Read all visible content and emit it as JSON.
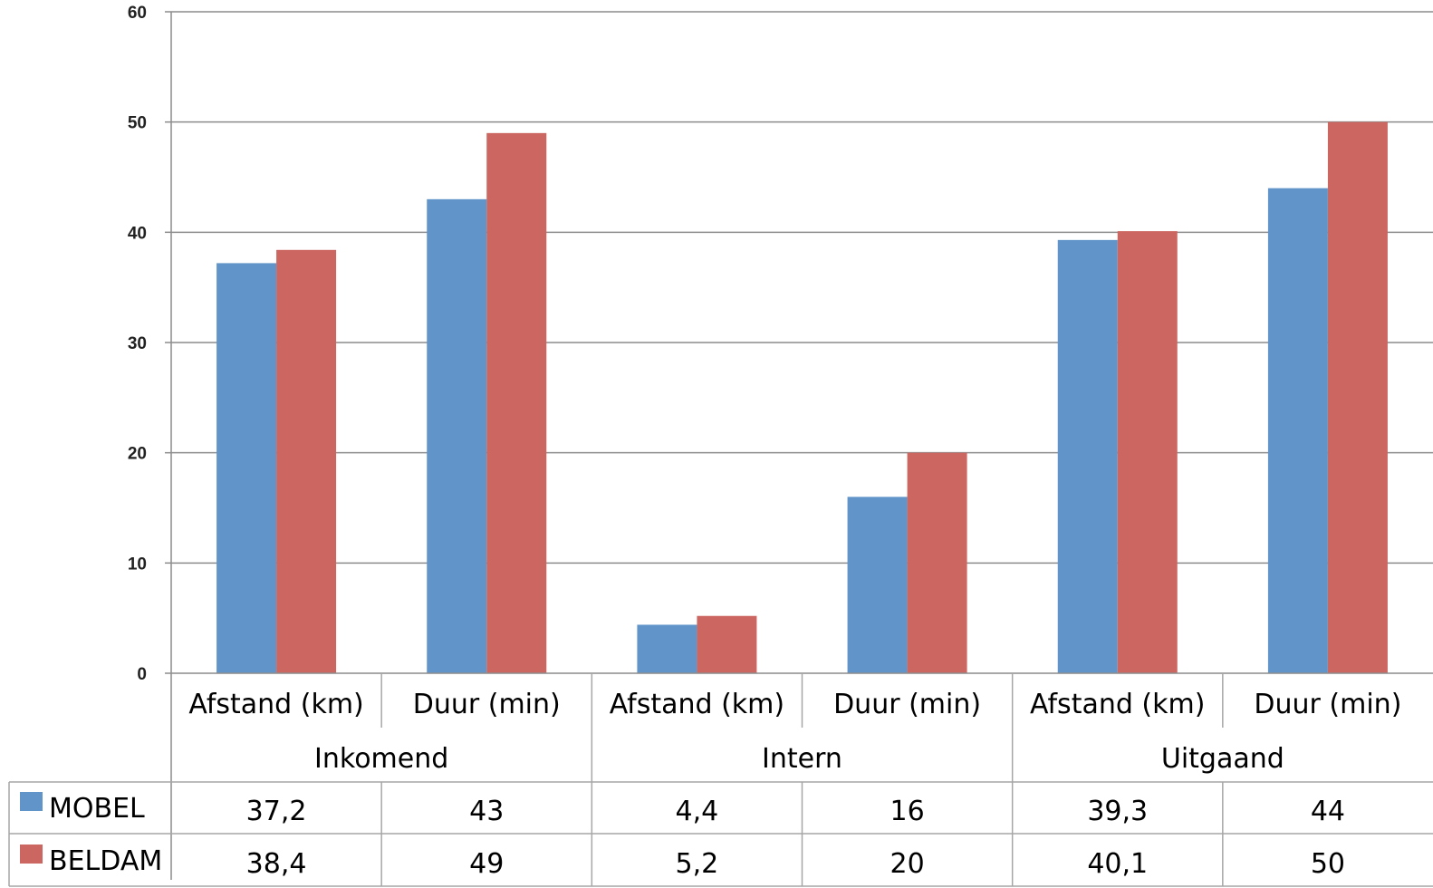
{
  "chart_data": {
    "type": "bar",
    "categories": [
      "Afstand (km)",
      "Duur (min)",
      "Afstand (km)",
      "Duur (min)",
      "Afstand (km)",
      "Duur (min)"
    ],
    "groups": [
      {
        "label": "Inkomend",
        "span": 2
      },
      {
        "label": "Intern",
        "span": 2
      },
      {
        "label": "Uitgaand",
        "span": 2
      }
    ],
    "series": [
      {
        "name": "MOBEL",
        "color": "#6195C9",
        "values": [
          37.2,
          43,
          4.4,
          16,
          39.3,
          44
        ],
        "table_values": [
          "37,2",
          "43",
          "4,4",
          "16",
          "39,3",
          "44"
        ]
      },
      {
        "name": "BELDAM",
        "color": "#CC6660",
        "values": [
          38.4,
          49,
          5.2,
          20,
          40.1,
          50
        ],
        "table_values": [
          "38,4",
          "49",
          "5,2",
          "20",
          "40,1",
          "50"
        ]
      }
    ],
    "ylim": [
      0,
      60
    ],
    "yticks": [
      "0",
      "10",
      "20",
      "30",
      "40",
      "50",
      "60"
    ],
    "grid": true,
    "legend": "data-table"
  }
}
